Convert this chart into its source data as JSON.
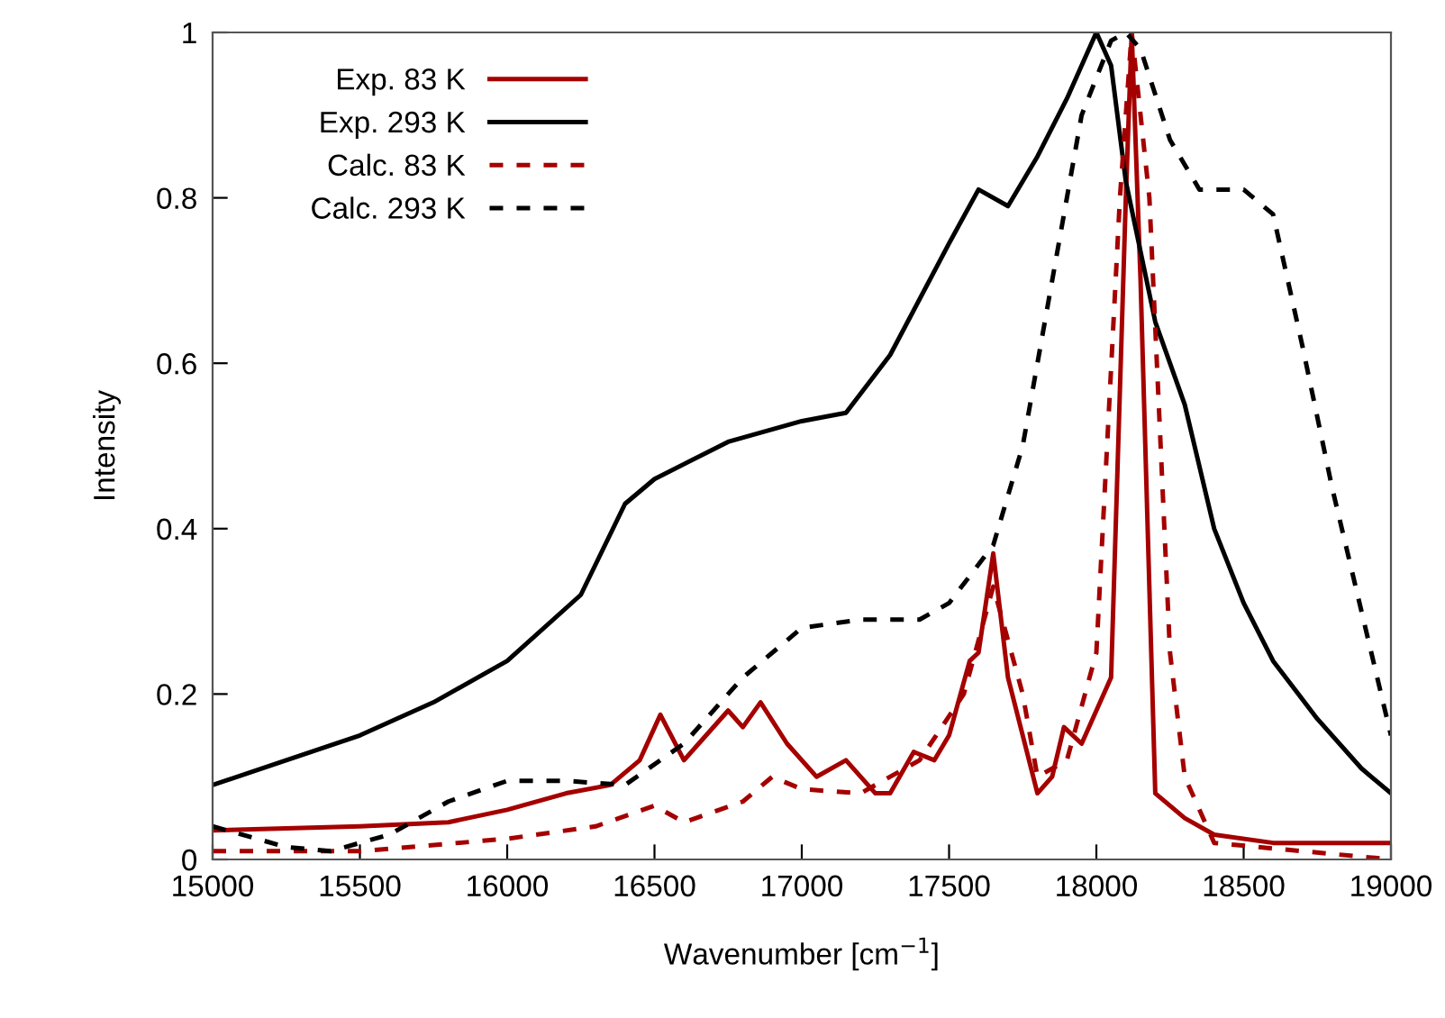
{
  "chart_data": {
    "type": "line",
    "xlabel": "Wavenumber [cm$^{−1}$]",
    "ylabel": "Intensity",
    "xlim": [
      15000,
      19000
    ],
    "ylim": [
      0,
      1
    ],
    "xticks": [
      15000,
      15500,
      16000,
      16500,
      17000,
      17500,
      18000,
      18500,
      19000
    ],
    "yticks": [
      0,
      0.2,
      0.4,
      0.6,
      0.8,
      1
    ],
    "grid": false,
    "legend": "top left",
    "marker": "none",
    "series": [
      {
        "name": "Exp. 83 K",
        "color": "#a50000",
        "line_style": "solid",
        "x": [
          15000,
          15500,
          15800,
          16000,
          16200,
          16350,
          16450,
          16520,
          16600,
          16650,
          16750,
          16800,
          16860,
          16950,
          17050,
          17150,
          17250,
          17300,
          17380,
          17450,
          17500,
          17570,
          17600,
          17650,
          17700,
          17800,
          17850,
          17890,
          17950,
          18000,
          18050,
          18100,
          18120,
          18150,
          18200,
          18300,
          18400,
          18600,
          19000
        ],
        "values": [
          0.035,
          0.04,
          0.045,
          0.06,
          0.08,
          0.09,
          0.12,
          0.175,
          0.12,
          0.14,
          0.18,
          0.16,
          0.19,
          0.14,
          0.1,
          0.12,
          0.08,
          0.08,
          0.13,
          0.12,
          0.15,
          0.24,
          0.25,
          0.37,
          0.22,
          0.08,
          0.1,
          0.16,
          0.14,
          0.18,
          0.22,
          0.8,
          1.0,
          0.7,
          0.08,
          0.05,
          0.03,
          0.02,
          0.02
        ]
      },
      {
        "name": "Exp. 293 K",
        "color": "#000000",
        "line_style": "solid",
        "x": [
          15000,
          15250,
          15500,
          15750,
          16000,
          16250,
          16400,
          16500,
          16750,
          17000,
          17150,
          17300,
          17500,
          17600,
          17700,
          17800,
          17900,
          18000,
          18050,
          18100,
          18200,
          18300,
          18400,
          18500,
          18600,
          18750,
          18900,
          19000
        ],
        "values": [
          0.09,
          0.12,
          0.15,
          0.19,
          0.24,
          0.32,
          0.43,
          0.46,
          0.505,
          0.53,
          0.54,
          0.61,
          0.745,
          0.81,
          0.79,
          0.85,
          0.92,
          1.0,
          0.96,
          0.82,
          0.65,
          0.55,
          0.4,
          0.31,
          0.24,
          0.17,
          0.11,
          0.08
        ]
      },
      {
        "name": "Calc. 83 K",
        "color": "#a50000",
        "line_style": "dashed",
        "x": [
          15000,
          15500,
          16000,
          16300,
          16500,
          16600,
          16800,
          16900,
          17000,
          17200,
          17400,
          17550,
          17650,
          17750,
          17800,
          17900,
          18000,
          18080,
          18120,
          18180,
          18250,
          18300,
          18400,
          19000
        ],
        "values": [
          0.01,
          0.01,
          0.025,
          0.04,
          0.065,
          0.045,
          0.07,
          0.1,
          0.085,
          0.08,
          0.12,
          0.2,
          0.33,
          0.2,
          0.1,
          0.12,
          0.25,
          0.8,
          1.0,
          0.8,
          0.25,
          0.1,
          0.02,
          0.0
        ]
      },
      {
        "name": "Calc. 293 K",
        "color": "#000000",
        "line_style": "dashed",
        "x": [
          15000,
          15250,
          15400,
          15600,
          15800,
          16000,
          16200,
          16400,
          16600,
          16800,
          17000,
          17200,
          17400,
          17500,
          17650,
          17750,
          17850,
          17950,
          18050,
          18100,
          18150,
          18250,
          18350,
          18500,
          18600,
          18700,
          18800,
          18900,
          19000
        ],
        "values": [
          0.04,
          0.015,
          0.01,
          0.03,
          0.07,
          0.095,
          0.095,
          0.09,
          0.14,
          0.22,
          0.28,
          0.29,
          0.29,
          0.31,
          0.38,
          0.5,
          0.7,
          0.9,
          0.99,
          1.0,
          0.98,
          0.87,
          0.81,
          0.81,
          0.78,
          0.62,
          0.45,
          0.3,
          0.15
        ]
      }
    ]
  }
}
